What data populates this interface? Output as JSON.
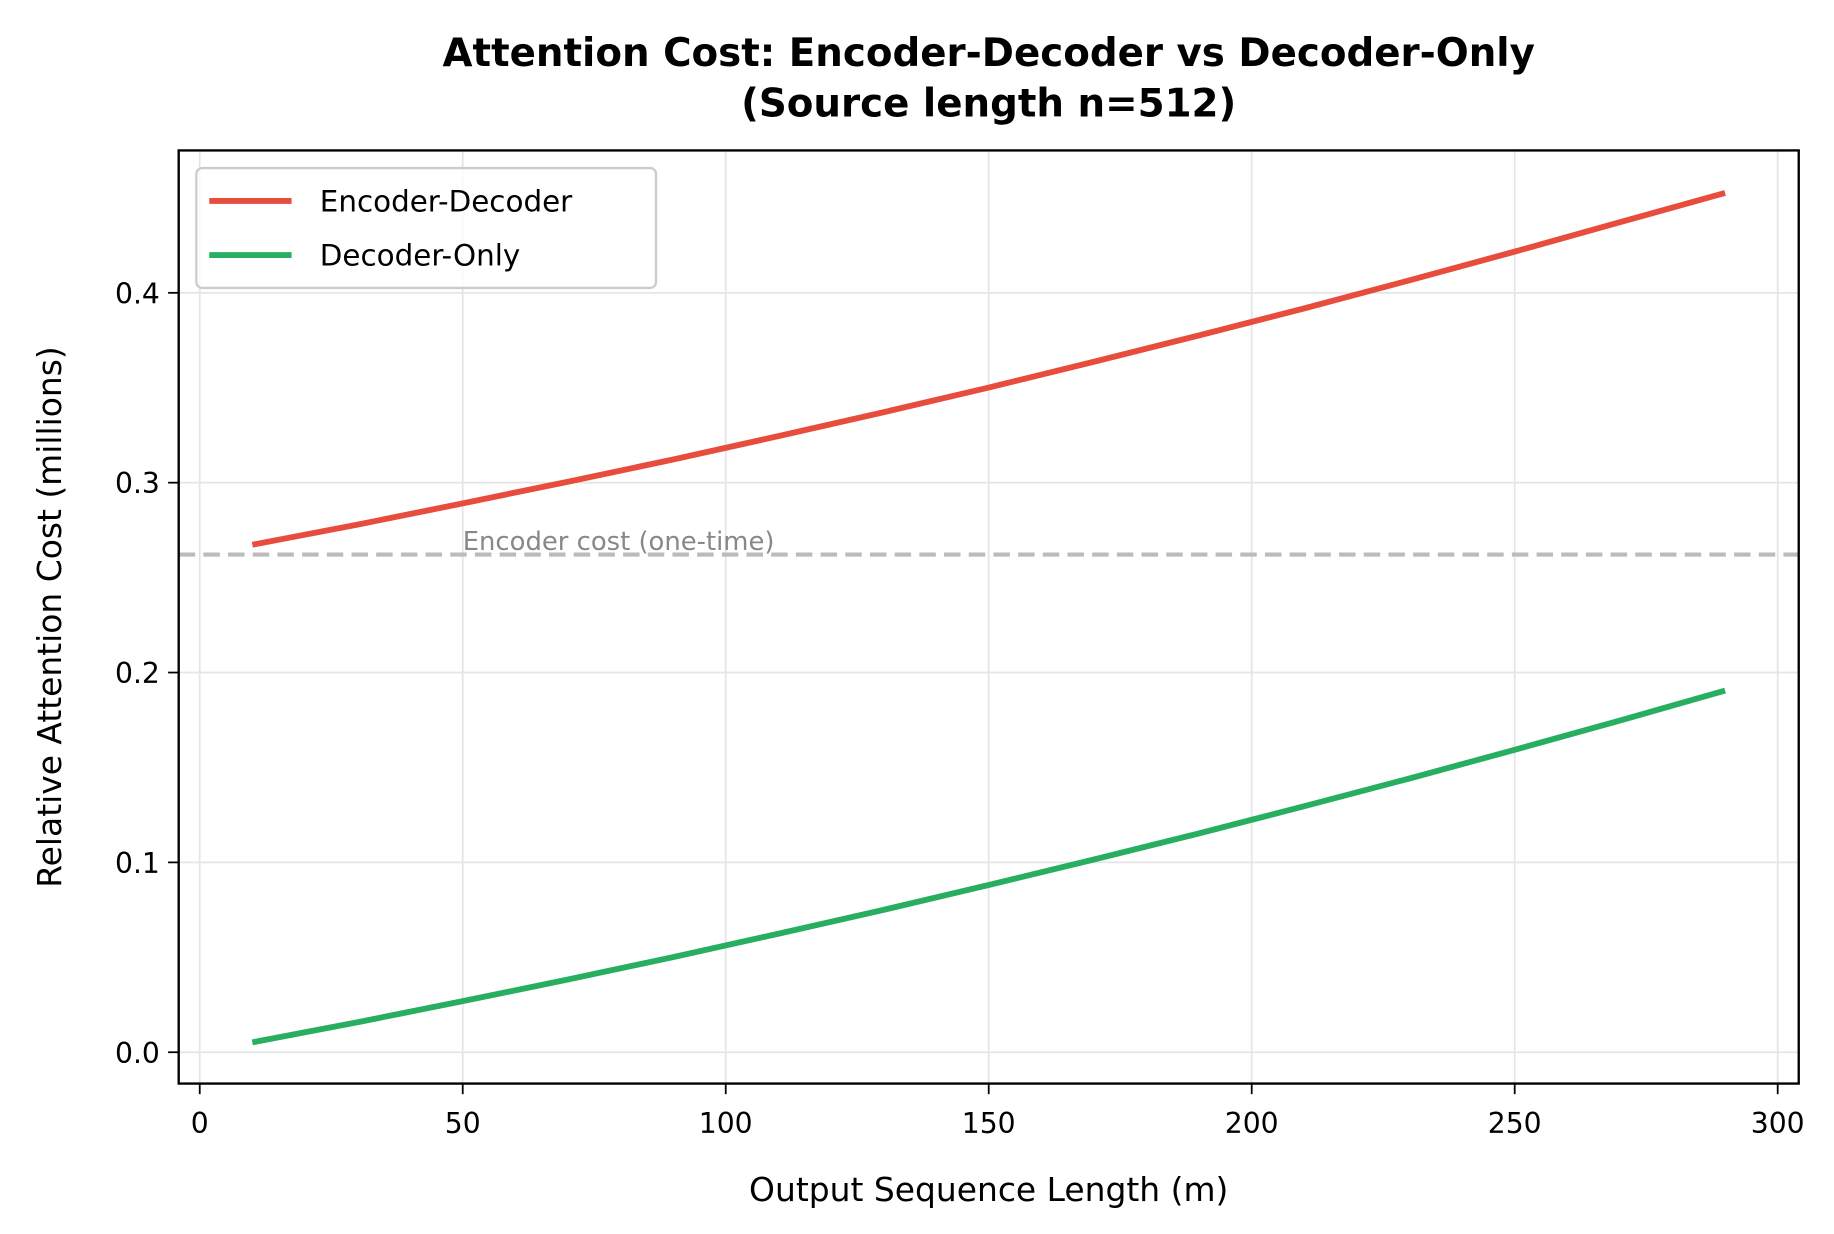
{
  "chart_data": {
    "type": "line",
    "title": "Attention Cost: Encoder-Decoder vs Decoder-Only",
    "subtitle": "(Source length n=512)",
    "xlabel": "Output Sequence Length (m)",
    "ylabel": "Relative Attention Cost (millions)",
    "xlim": [
      -4,
      304
    ],
    "ylim": [
      -0.0165,
      0.475
    ],
    "xticks": [
      0,
      50,
      100,
      150,
      200,
      250,
      300
    ],
    "yticks": [
      0.0,
      0.1,
      0.2,
      0.3,
      0.4
    ],
    "ytick_labels": [
      "0.0",
      "0.1",
      "0.2",
      "0.3",
      "0.4"
    ],
    "grid": true,
    "legend_placement": "upper-left",
    "x": [
      10,
      30,
      50,
      70,
      90,
      110,
      130,
      150,
      170,
      190,
      210,
      230,
      250,
      270,
      290
    ],
    "series": [
      {
        "name": "Encoder-Decoder",
        "color": "#e74c3c",
        "values": [
          0.2673,
          0.2779,
          0.2891,
          0.3005,
          0.3122,
          0.3245,
          0.3371,
          0.3501,
          0.3637,
          0.3776,
          0.3918,
          0.4066,
          0.4217,
          0.4372,
          0.4526
        ]
      },
      {
        "name": "Decoder-Only",
        "color": "#27ae60",
        "values": [
          0.0052,
          0.0158,
          0.0269,
          0.0383,
          0.0501,
          0.0624,
          0.075,
          0.0881,
          0.1015,
          0.1153,
          0.1296,
          0.1442,
          0.1593,
          0.1747,
          0.1905
        ]
      }
    ],
    "reference_line": {
      "y": 0.262144,
      "label": "Encoder cost (one-time)",
      "color": "#bbbbbb",
      "style": "dashed"
    }
  }
}
